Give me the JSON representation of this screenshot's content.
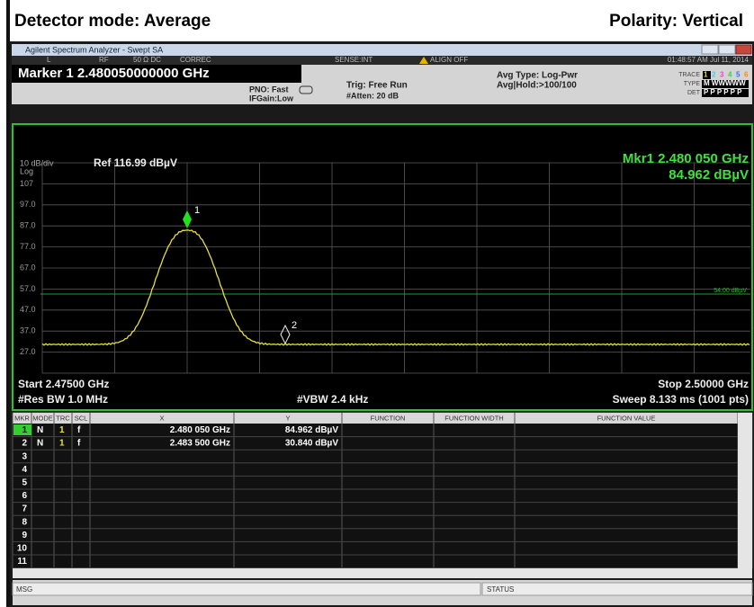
{
  "header": {
    "left": "Detector mode: Average",
    "right": "Polarity: Vertical"
  },
  "window": {
    "title": "Agilent Spectrum Analyzer - Swept SA"
  },
  "status": {
    "mode": "L",
    "rf": "RF",
    "input": "50 Ω  DC",
    "correc": "CORREC",
    "sense": "SENSE:INT",
    "align": "ALIGN OFF",
    "time": "01:48:57 AM Jul 11, 2014"
  },
  "marker_bar": {
    "marker": "Marker 1 2.480050000000 GHz",
    "pno": "PNO: Fast",
    "ifgain": "IFGain:Low",
    "trig": "Trig: Free Run",
    "atten": "#Atten: 20 dB",
    "avg_type": "Avg Type: Log-Pwr",
    "avg_hold": "Avg|Hold:>100/100",
    "trace_label": "TRACE",
    "trace": [
      "1",
      "2",
      "3",
      "4",
      "5",
      "6"
    ],
    "type_label": "TYPE",
    "type": "M WWWWW",
    "det_label": "DET",
    "det": "P P P P P P"
  },
  "plot": {
    "scale": "10 dB/div",
    "scale_type": "Log",
    "ref": "Ref 116.99 dBµV",
    "mkr_freq": "Mkr1 2.480 050 GHz",
    "mkr_amp": "84.962 dBµV",
    "y_labels": [
      "107",
      "97.0",
      "87.0",
      "77.0",
      "67.0",
      "57.0",
      "47.0",
      "37.0",
      "27.0"
    ],
    "display_line": "54.00 dBµV",
    "marker1": "1",
    "marker2": "2",
    "start": "Start 2.47500 GHz",
    "stop": "Stop 2.50000 GHz",
    "rbw": "#Res BW 1.0 MHz",
    "vbw": "#VBW 2.4 kHz",
    "sweep": "Sweep  8.133 ms (1001 pts)"
  },
  "table": {
    "headers": [
      "MKR",
      "MODE",
      "TRC",
      "SCL",
      "X",
      "Y",
      "FUNCTION",
      "FUNCTION WIDTH",
      "FUNCTION VALUE"
    ],
    "rows": [
      [
        "1",
        "N",
        "1",
        "f",
        "2.480 050 GHz",
        "84.962 dBµV"
      ],
      [
        "2",
        "N",
        "1",
        "f",
        "2.483 500 GHz",
        "30.840 dBµV"
      ],
      [
        "3"
      ],
      [
        "4"
      ],
      [
        "5"
      ],
      [
        "6"
      ],
      [
        "7"
      ],
      [
        "8"
      ],
      [
        "9"
      ],
      [
        "10"
      ],
      [
        "11"
      ]
    ]
  },
  "footer": {
    "msg": "MSG",
    "status": "STATUS"
  }
}
